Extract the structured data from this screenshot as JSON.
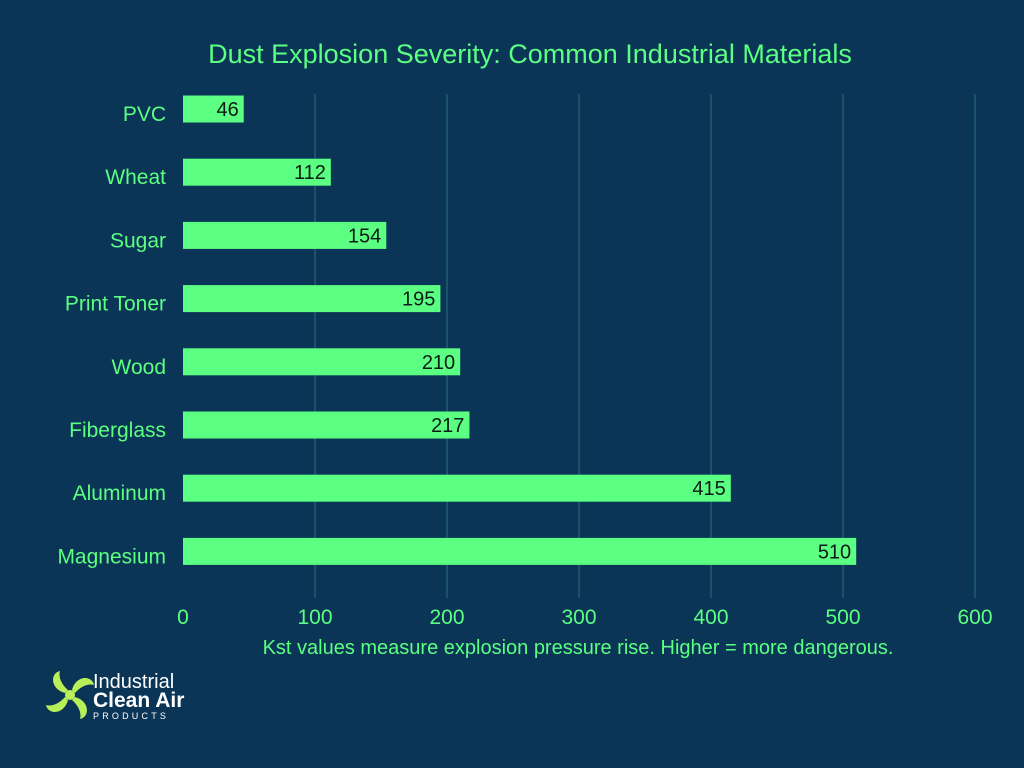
{
  "chart_data": {
    "type": "bar",
    "orientation": "horizontal",
    "title": "Dust Explosion Severity: Common Industrial Materials",
    "categories": [
      "PVC",
      "Wheat",
      "Sugar",
      "Print Toner",
      "Wood",
      "Fiberglass",
      "Aluminum",
      "Magnesium"
    ],
    "values": [
      46,
      112,
      154,
      195,
      210,
      217,
      415,
      510
    ],
    "xlim": [
      0,
      600
    ],
    "xticks": [
      0,
      100,
      200,
      300,
      400,
      500,
      600
    ],
    "note": "Kst values measure explosion pressure rise. Higher = more dangerous.",
    "grid": "vertical",
    "colors": {
      "background": "#0a3556",
      "bar": "#5bff82",
      "text": "#5bff82",
      "data_label": "#0d1b16",
      "grid": "#2c6f78"
    }
  },
  "logo": {
    "line1": "Industrial",
    "line2": "Clean Air",
    "line3": "PRODUCTS",
    "icon": "fan-icon",
    "icon_color": "#b8f05a"
  }
}
